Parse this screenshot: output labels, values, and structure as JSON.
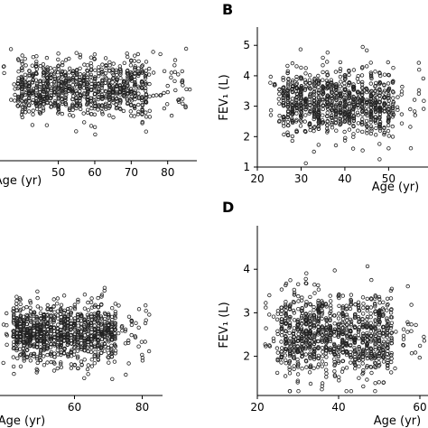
{
  "colors": {
    "background": "#ffffff",
    "axis": "#000000",
    "marker": "#222222"
  },
  "chart_data": [
    {
      "panel": "A",
      "type": "scatter",
      "panel_label_visible": false,
      "xlabel": "Age (yr)",
      "ylabel": "",
      "xlim": [
        34,
        88
      ],
      "ylim": [
        0.8,
        5.6
      ],
      "x_ticks": [
        "50",
        "60",
        "70",
        "80"
      ],
      "y_ticks": [],
      "marker": "open-circle",
      "cloud": {
        "x_range": [
          34,
          86
        ],
        "y_center": 3.3,
        "y_spread": 1.7,
        "n": 900
      }
    },
    {
      "panel": "B",
      "type": "scatter",
      "panel_label_visible": true,
      "xlabel": "Age (yr)",
      "ylabel": "FEV₁ (L)",
      "xlim": [
        20,
        59
      ],
      "ylim": [
        1,
        5.6
      ],
      "x_ticks": [
        "20",
        "30",
        "40",
        "50"
      ],
      "y_ticks": [
        "1",
        "2",
        "3",
        "4",
        "5"
      ],
      "marker": "open-circle",
      "cloud": {
        "x_range": [
          23,
          59
        ],
        "y_center": 3.1,
        "y_spread": 1.8,
        "n": 900
      }
    },
    {
      "panel": "C",
      "type": "scatter",
      "panel_label_visible": false,
      "xlabel": "Age (yr)",
      "ylabel": "",
      "xlim": [
        38,
        86
      ],
      "ylim": [
        0.8,
        5.2
      ],
      "x_ticks": [
        "60",
        "80"
      ],
      "y_ticks": [],
      "marker": "open-circle",
      "cloud": {
        "x_range": [
          38,
          82
        ],
        "y_center": 2.7,
        "y_spread": 1.6,
        "n": 1000
      }
    },
    {
      "panel": "D",
      "type": "scatter",
      "panel_label_visible": true,
      "xlabel": "Age (yr)",
      "ylabel": "FEV₁ (L)",
      "xlim": [
        20,
        62
      ],
      "ylim": [
        1.1,
        5.0
      ],
      "x_ticks": [
        "20",
        "40",
        "60"
      ],
      "y_ticks": [
        "2",
        "3",
        "4"
      ],
      "marker": "open-circle",
      "cloud": {
        "x_range": [
          22,
          62
        ],
        "y_center": 2.5,
        "y_spread": 1.6,
        "n": 1000
      }
    }
  ]
}
